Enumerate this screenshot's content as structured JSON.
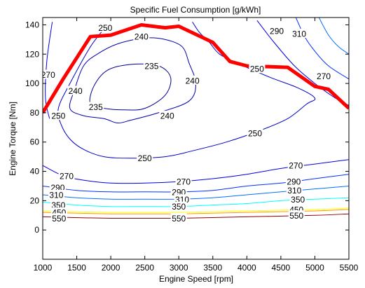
{
  "chart_data": {
    "type": "contour",
    "title": "Specific Fuel Consumption [g/kWh]",
    "xlabel": "Engine Speed [rpm]",
    "ylabel": "Engine Torque [Nm]",
    "xlim": [
      1000,
      5500
    ],
    "ylim": [
      -20,
      145
    ],
    "xticks": [
      "1000",
      "1500",
      "2000",
      "2500",
      "3000",
      "3500",
      "4000",
      "4500",
      "5000",
      "5500"
    ],
    "yticks": [
      "0",
      "20",
      "40",
      "60",
      "80",
      "100",
      "120",
      "140"
    ],
    "grid": false,
    "contours": [
      {
        "level": 235,
        "color": "#00008f",
        "closed": true,
        "points": [
          [
            1700,
            86
          ],
          [
            1750,
            98
          ],
          [
            1950,
            109
          ],
          [
            2300,
            113
          ],
          [
            2700,
            112
          ],
          [
            2880,
            104
          ],
          [
            2800,
            92
          ],
          [
            2500,
            83
          ],
          [
            2200,
            82
          ],
          [
            1900,
            83
          ]
        ],
        "labels": [
          {
            "text": "235",
            "x": 2600,
            "y": 112
          },
          {
            "text": "235",
            "x": 1780,
            "y": 84
          }
        ]
      },
      {
        "level": 240,
        "color": "#0000ad",
        "closed": true,
        "points": [
          [
            1400,
            83
          ],
          [
            1470,
            96
          ],
          [
            1600,
            112
          ],
          [
            1800,
            120
          ],
          [
            2100,
            127
          ],
          [
            2500,
            131
          ],
          [
            2800,
            130
          ],
          [
            3050,
            125
          ],
          [
            3150,
            114
          ],
          [
            3250,
            100
          ],
          [
            3150,
            88
          ],
          [
            2700,
            80
          ],
          [
            2300,
            75
          ],
          [
            2100,
            73
          ],
          [
            1900,
            76
          ],
          [
            1600,
            78
          ]
        ],
        "labels": [
          {
            "text": "240",
            "x": 2450,
            "y": 132
          },
          {
            "text": "240",
            "x": 1480,
            "y": 95
          },
          {
            "text": "240",
            "x": 3200,
            "y": 102
          },
          {
            "text": "240",
            "x": 2830,
            "y": 78
          }
        ]
      },
      {
        "level": 250,
        "color": "#0000c8",
        "closed": false,
        "points": [
          [
            1950,
            140
          ],
          [
            1700,
            125
          ],
          [
            1400,
            100
          ],
          [
            1230,
            83
          ],
          [
            1270,
            72
          ],
          [
            1400,
            62
          ],
          [
            1600,
            55
          ],
          [
            1900,
            50
          ],
          [
            2300,
            49
          ],
          [
            2800,
            50
          ],
          [
            3200,
            54
          ],
          [
            3700,
            60
          ],
          [
            4200,
            68
          ],
          [
            4600,
            76
          ],
          [
            4880,
            86
          ],
          [
            5000,
            90
          ],
          [
            4750,
            97
          ],
          [
            4350,
            104
          ],
          [
            3900,
            113
          ],
          [
            3600,
            120
          ],
          [
            3450,
            128
          ],
          [
            3300,
            135
          ],
          [
            3200,
            142
          ]
        ],
        "labels": [
          {
            "text": "250",
            "x": 1920,
            "y": 138
          },
          {
            "text": "250",
            "x": 1230,
            "y": 78
          },
          {
            "text": "250",
            "x": 2500,
            "y": 49
          },
          {
            "text": "250",
            "x": 4120,
            "y": 66
          },
          {
            "text": "250",
            "x": 4150,
            "y": 110
          }
        ]
      },
      {
        "level": 270,
        "color": "#0000e6",
        "closed": false,
        "points": [
          [
            1140,
            142
          ],
          [
            1060,
            115
          ],
          [
            1040,
            90
          ],
          [
            1100,
            76
          ]
        ],
        "labels": [
          {
            "text": "270",
            "x": 1080,
            "y": 106
          }
        ]
      },
      {
        "level": 270,
        "color": "#0000e6",
        "closed": false,
        "points": [
          [
            1000,
            44
          ],
          [
            1300,
            37
          ],
          [
            1600,
            34
          ],
          [
            2000,
            32
          ],
          [
            2500,
            32
          ],
          [
            3000,
            33
          ],
          [
            3500,
            35
          ],
          [
            4000,
            38
          ],
          [
            4500,
            42
          ],
          [
            5000,
            45
          ],
          [
            5500,
            48
          ]
        ],
        "labels": [
          {
            "text": "270",
            "x": 1350,
            "y": 37
          },
          {
            "text": "270",
            "x": 3070,
            "y": 33
          },
          {
            "text": "270",
            "x": 4720,
            "y": 44
          }
        ]
      },
      {
        "level": 270,
        "color": "#0000e6",
        "closed": false,
        "points": [
          [
            4150,
            143
          ],
          [
            4400,
            128
          ],
          [
            4700,
            112
          ],
          [
            5000,
            100
          ],
          [
            5300,
            90
          ],
          [
            5500,
            85
          ]
        ],
        "labels": [
          {
            "text": "270",
            "x": 5130,
            "y": 105
          }
        ]
      },
      {
        "level": 290,
        "color": "#0030ff",
        "closed": false,
        "points": [
          [
            1000,
            30
          ],
          [
            1500,
            27
          ],
          [
            2000,
            26
          ],
          [
            2500,
            26
          ],
          [
            3000,
            26
          ],
          [
            3500,
            27
          ],
          [
            4000,
            30
          ],
          [
            4500,
            32
          ],
          [
            5000,
            35
          ],
          [
            5500,
            38
          ]
        ],
        "labels": [
          {
            "text": "290",
            "x": 1220,
            "y": 29
          },
          {
            "text": "290",
            "x": 3000,
            "y": 26
          },
          {
            "text": "290",
            "x": 4690,
            "y": 33
          }
        ]
      },
      {
        "level": 290,
        "color": "#0030ff",
        "closed": false,
        "points": [
          [
            4720,
            145
          ],
          [
            4850,
            132
          ],
          [
            5000,
            122
          ],
          [
            5200,
            112
          ],
          [
            5500,
            103
          ]
        ],
        "labels": [
          {
            "text": "290",
            "x": 4440,
            "y": 136
          }
        ]
      },
      {
        "level": 310,
        "color": "#0070ff",
        "closed": false,
        "points": [
          [
            1000,
            24
          ],
          [
            1500,
            22
          ],
          [
            2000,
            21
          ],
          [
            2500,
            21
          ],
          [
            3000,
            21
          ],
          [
            3500,
            22
          ],
          [
            4000,
            24
          ],
          [
            4500,
            26
          ],
          [
            5000,
            28
          ],
          [
            5500,
            30
          ]
        ],
        "labels": [
          {
            "text": "310",
            "x": 1200,
            "y": 24
          },
          {
            "text": "310",
            "x": 3050,
            "y": 21
          },
          {
            "text": "310",
            "x": 4700,
            "y": 27
          }
        ]
      },
      {
        "level": 310,
        "color": "#0070ff",
        "closed": false,
        "points": [
          [
            5060,
            145
          ],
          [
            5200,
            133
          ],
          [
            5350,
            125
          ],
          [
            5500,
            120
          ]
        ],
        "labels": [
          {
            "text": "310",
            "x": 4770,
            "y": 134
          }
        ]
      },
      {
        "level": 350,
        "color": "#00ffff",
        "closed": false,
        "points": [
          [
            1000,
            19
          ],
          [
            1500,
            17
          ],
          [
            2000,
            16
          ],
          [
            2500,
            16
          ],
          [
            3000,
            16
          ],
          [
            3500,
            17
          ],
          [
            4000,
            18
          ],
          [
            4500,
            20
          ],
          [
            5000,
            21
          ],
          [
            5500,
            22
          ]
        ],
        "labels": [
          {
            "text": "350",
            "x": 1230,
            "y": 17
          },
          {
            "text": "350",
            "x": 3000,
            "y": 16
          },
          {
            "text": "350",
            "x": 4750,
            "y": 21
          }
        ]
      },
      {
        "level": 450,
        "color": "#ffff00",
        "closed": false,
        "points": [
          [
            1000,
            13
          ],
          [
            2000,
            12
          ],
          [
            3000,
            12
          ],
          [
            4000,
            13
          ],
          [
            5000,
            14
          ],
          [
            5500,
            15
          ]
        ],
        "labels": [
          {
            "text": "450",
            "x": 1240,
            "y": 12
          },
          {
            "text": "450",
            "x": 4730,
            "y": 14
          }
        ]
      },
      {
        "level": 450,
        "color": "#ff9900",
        "closed": false,
        "points": [
          [
            1000,
            12
          ],
          [
            2000,
            11
          ],
          [
            3000,
            11
          ],
          [
            4000,
            12
          ],
          [
            5000,
            13
          ],
          [
            5500,
            14
          ]
        ],
        "labels": []
      },
      {
        "level": 550,
        "color": "#8b0000",
        "closed": false,
        "points": [
          [
            1000,
            9
          ],
          [
            2000,
            8
          ],
          [
            3000,
            8
          ],
          [
            4000,
            9
          ],
          [
            5000,
            10
          ],
          [
            5500,
            11
          ]
        ],
        "labels": [
          {
            "text": "550",
            "x": 1240,
            "y": 8
          },
          {
            "text": "550",
            "x": 3000,
            "y": 8
          },
          {
            "text": "550",
            "x": 4730,
            "y": 10
          }
        ]
      }
    ],
    "max_torque_line": {
      "color": "#ff0000",
      "x": [
        1000,
        1300,
        1700,
        2000,
        2450,
        2800,
        3000,
        3500,
        3750,
        4000,
        4600,
        5000,
        5200,
        5500
      ],
      "y": [
        80,
        103,
        132,
        133,
        140,
        138,
        139,
        128,
        115,
        112,
        111,
        98,
        96,
        83
      ]
    }
  }
}
